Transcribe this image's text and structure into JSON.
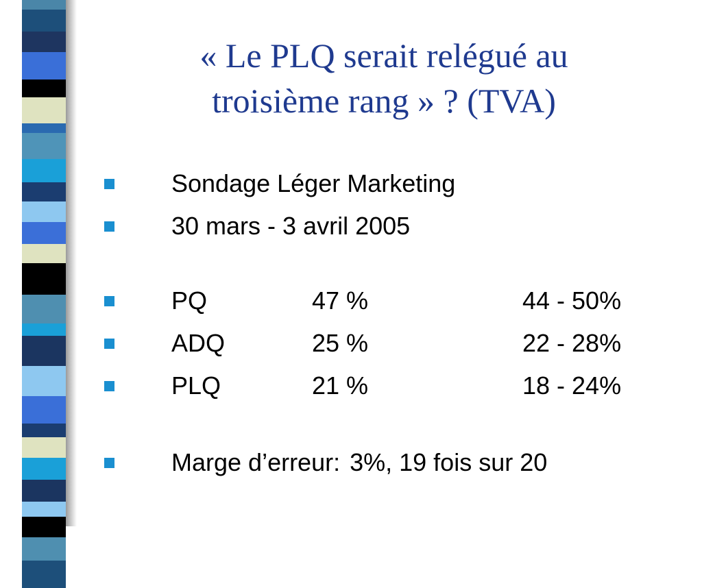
{
  "slide": {
    "title_line1": "« Le PLQ serait relégué au",
    "title_line2": "troisième rang » ? (TVA)",
    "bullet_color": "#1a8fd0",
    "title_color": "#1f3a8f"
  },
  "info": {
    "source": "Sondage Léger Marketing",
    "dates": "30 mars - 3 avril 2005"
  },
  "results": [
    {
      "party": "PQ",
      "share": "47 %",
      "range": "44 - 50%"
    },
    {
      "party": "ADQ",
      "share": "25 %",
      "range": "22 - 28%"
    },
    {
      "party": "PLQ",
      "share": "21 %",
      "range": "18 - 24%"
    }
  ],
  "margin": {
    "label": "Marge d’erreur:",
    "value": "3%, 19 fois sur 20"
  }
}
